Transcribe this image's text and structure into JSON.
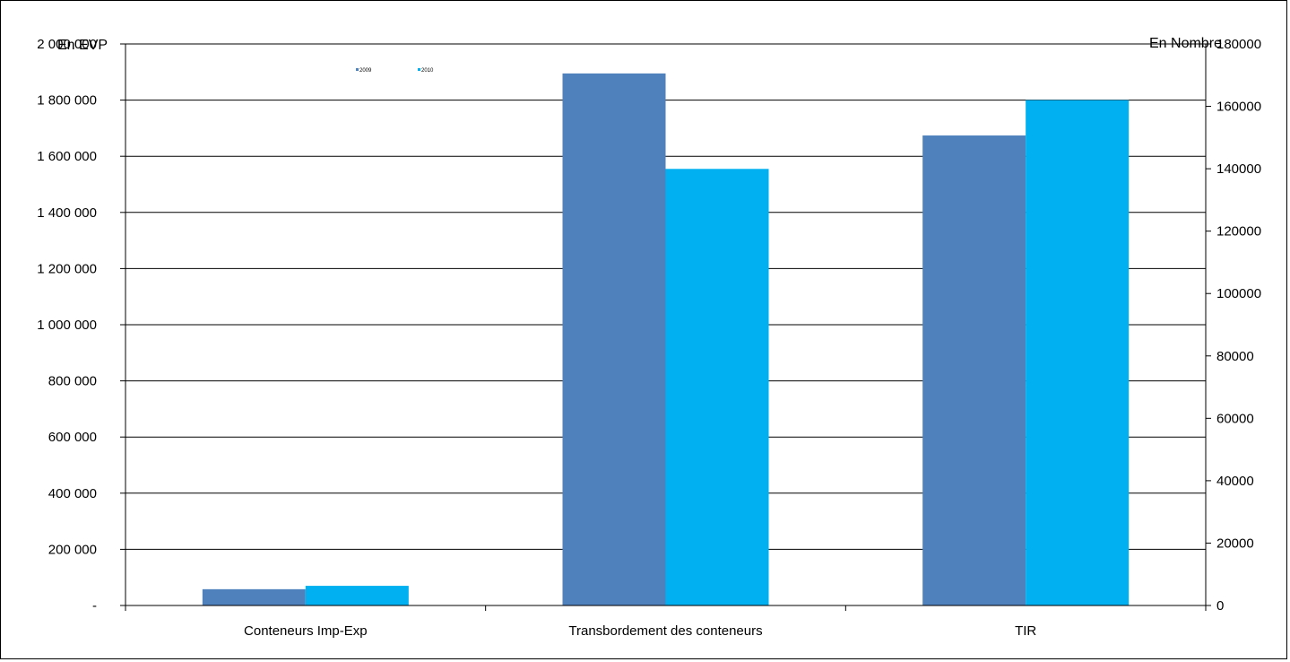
{
  "chart_data": {
    "type": "bar",
    "categories": [
      "Conteneurs Imp-Exp",
      "Transbordement des conteneurs",
      "TIR"
    ],
    "series": [
      {
        "name": "2009",
        "color": "#4f81bd",
        "values": [
          58000,
          1895000,
          1674000
        ]
      },
      {
        "name": "2010",
        "color": "#00b0f0",
        "values": [
          70000,
          1555000,
          1800000
        ]
      }
    ],
    "y_left": {
      "label": "En EVP",
      "ylim": [
        0,
        2000000
      ],
      "ticks": [
        0,
        200000,
        400000,
        600000,
        800000,
        1000000,
        1200000,
        1400000,
        1600000,
        1800000,
        2000000
      ],
      "tick_labels": [
        "-",
        "200 000",
        "400 000",
        "600 000",
        "800 000",
        "1 000 000",
        "1 200 000",
        "1 400 000",
        "1 600 000",
        "1 800 000",
        "2 000 000"
      ]
    },
    "y_right": {
      "label": "En Nombre",
      "ylim": [
        0,
        180000
      ],
      "tick_labels": [
        "0",
        "20000",
        "40000",
        "60000",
        "80000",
        "100000",
        "120000",
        "140000",
        "160000",
        "180000"
      ]
    },
    "grid": true,
    "legend": "top-left"
  }
}
